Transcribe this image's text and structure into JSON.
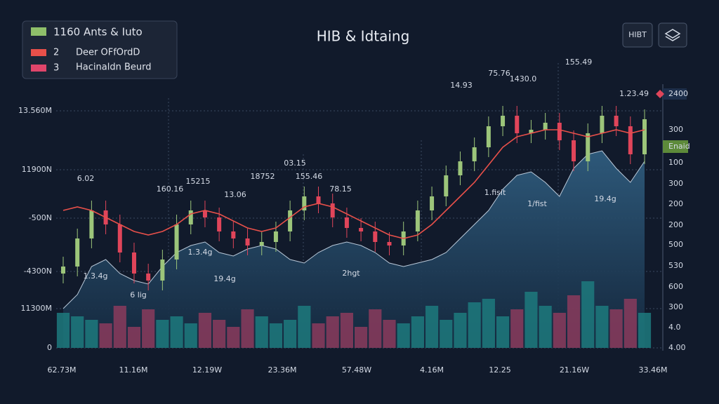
{
  "header": {
    "title": "HIB & Idtaing",
    "button": "HIBT"
  },
  "chart_data": {
    "type": "candlestick",
    "ylim": [
      0,
      340
    ],
    "yticks": [
      {
        "value": 338,
        "label": "13.560M"
      },
      {
        "value": 254,
        "label": "11900N"
      },
      {
        "value": 185,
        "label": "-500N"
      },
      {
        "value": 109,
        "label": "-4300N"
      },
      {
        "value": 56,
        "label": "11300M"
      },
      0
    ],
    "grid": true,
    "y2_labels": [
      "2400",
      "300",
      "Enaid",
      "100",
      "300",
      "200",
      "200",
      "500",
      "530",
      "600",
      "300",
      "4.0",
      "4.00"
    ],
    "x_labels": [
      "62.73M",
      "11.16M",
      "12.19W",
      "23.36M",
      "57.48W",
      "4.16M",
      "12.25",
      "21.16W",
      "33.46M"
    ],
    "candles": {
      "name": "1160 Ants & Iuto",
      "color": "#8fbf6a",
      "up_color": "#9cc57a",
      "down_color": "#e0455a",
      "open": [
        106,
        116,
        156,
        196,
        176,
        136,
        106,
        96,
        126,
        176,
        196,
        186,
        166,
        156,
        146,
        151,
        166,
        196,
        216,
        206,
        186,
        171,
        166,
        151,
        146,
        166,
        196,
        216,
        246,
        266,
        286,
        316,
        331,
        306,
        311,
        321,
        296,
        266,
        306,
        331,
        316,
        276
      ],
      "high": [
        130,
        170,
        210,
        210,
        190,
        150,
        120,
        140,
        190,
        210,
        210,
        200,
        180,
        170,
        165,
        180,
        210,
        230,
        230,
        220,
        200,
        185,
        180,
        165,
        180,
        210,
        230,
        260,
        280,
        300,
        330,
        345,
        345,
        325,
        335,
        335,
        310,
        320,
        345,
        345,
        330,
        340
      ],
      "low": [
        92,
        102,
        142,
        162,
        122,
        92,
        82,
        82,
        112,
        162,
        172,
        152,
        142,
        132,
        132,
        137,
        152,
        182,
        192,
        172,
        157,
        152,
        137,
        132,
        132,
        152,
        182,
        202,
        232,
        252,
        272,
        302,
        292,
        292,
        297,
        282,
        252,
        252,
        292,
        302,
        262,
        262
      ],
      "close": [
        116,
        156,
        196,
        176,
        136,
        106,
        96,
        126,
        176,
        196,
        186,
        166,
        156,
        146,
        151,
        166,
        196,
        216,
        206,
        186,
        171,
        166,
        151,
        146,
        166,
        196,
        216,
        246,
        266,
        286,
        316,
        331,
        306,
        311,
        321,
        296,
        266,
        306,
        331,
        316,
        276,
        326
      ]
    },
    "average": {
      "name": "Deer OFfOrdD",
      "key": "2",
      "color": "#e8504a",
      "values": [
        196,
        201,
        196,
        186,
        176,
        166,
        161,
        166,
        176,
        191,
        196,
        191,
        181,
        171,
        166,
        171,
        186,
        201,
        206,
        201,
        191,
        181,
        171,
        161,
        156,
        161,
        176,
        196,
        216,
        236,
        261,
        286,
        301,
        306,
        311,
        311,
        306,
        301,
        306,
        311,
        306,
        311
      ]
    },
    "volume": {
      "name": "Hacinaldn Beurd",
      "key": "3",
      "color": "#e0456a",
      "up_color": "#1d7a7e",
      "down_color": "#8b3b5d",
      "values": [
        50,
        45,
        40,
        35,
        60,
        30,
        55,
        40,
        45,
        35,
        50,
        40,
        30,
        55,
        45,
        35,
        40,
        60,
        35,
        45,
        50,
        30,
        55,
        40,
        35,
        45,
        60,
        40,
        50,
        65,
        70,
        45,
        55,
        80,
        60,
        50,
        75,
        95,
        60,
        55,
        70,
        50
      ]
    },
    "area": {
      "color": "#2c5576",
      "values": [
        56,
        76,
        116,
        126,
        106,
        96,
        91,
        116,
        136,
        146,
        151,
        136,
        131,
        141,
        146,
        141,
        126,
        121,
        136,
        146,
        151,
        146,
        136,
        121,
        116,
        121,
        126,
        136,
        156,
        176,
        196,
        226,
        246,
        251,
        236,
        216,
        256,
        276,
        281,
        256,
        236,
        266
      ]
    },
    "annotations": [
      "6.02",
      "160.16",
      "15215",
      "13.06",
      "18752",
      "03.15",
      "155.46",
      "78.15",
      "14.93",
      "75.76",
      "1430.0",
      "155.49",
      "1.23.49",
      "1.fisit",
      "1/fist",
      "19.4g",
      "2hgt",
      "19.4g",
      "6 lig",
      "1.3.4g",
      "1.3.4g"
    ]
  }
}
